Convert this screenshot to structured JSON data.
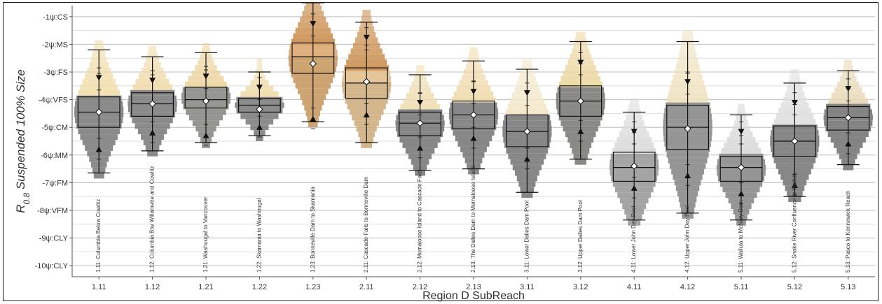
{
  "chart_data": {
    "type": "box",
    "xlabel": "Region D SubReach",
    "ylabel": "R0.8 Suspended 100% Size",
    "ylabel_parts": {
      "symbol": "R",
      "subscript": "0.8",
      "rest": " Suspended 100% Size"
    },
    "yticks": [
      {
        "value": -1,
        "label": "-1ψ:CS"
      },
      {
        "value": -2,
        "label": "-2ψ:MS"
      },
      {
        "value": -3,
        "label": "-3ψ:FS"
      },
      {
        "value": -4,
        "label": "-4ψ:VFS"
      },
      {
        "value": -5,
        "label": "-5ψ:CM"
      },
      {
        "value": -6,
        "label": "-6ψ:MM"
      },
      {
        "value": -7,
        "label": "-7ψ:FM"
      },
      {
        "value": -8,
        "label": "-8ψ:VFM"
      },
      {
        "value": -9,
        "label": "-9ψ:CLY"
      },
      {
        "value": -10,
        "label": "-10ψ:CLY"
      }
    ],
    "ylim": [
      -10.4,
      -0.6
    ],
    "grid": true,
    "categories": [
      "1.11",
      "1.12",
      "1.21",
      "1.22",
      "1.23",
      "2.11",
      "2.12",
      "2.13",
      "3.11",
      "3.12",
      "4.11",
      "4.12",
      "5.11",
      "5.12",
      "5.13"
    ],
    "names": [
      "1.11: Columbia Below Cowlitz",
      "1.12: Columbia Btw Willamette and Cowlitz",
      "1.21: Washougal to Vancouver",
      "1.22: Skamania to Washougal",
      "1.23: Bonneville Dam to Skamania",
      "2.11: Cascade Falls to Bonneville Dam",
      "2.12: Memaloose Island to Cascade Falls",
      "2.13: The Dalles Dam to Memaloose Island",
      "3.11: Lower Dalles Dam Pool",
      "3.12: Upper Dalles Dam Pool",
      "4.11: Lower John Day Pool",
      "4.12: Upper John Day Pool",
      "5.11: Wallula to McNary Dam",
      "5.12: Snake River Confluence to Wallula",
      "5.13: Pasco to Kennewick Reach"
    ],
    "boxes": [
      {
        "whisker_high": -2.2,
        "q3": -3.9,
        "median": -4.45,
        "q1": -5.0,
        "whisker_low": -6.65,
        "mean": -4.45,
        "up_tri": -5.8,
        "down_tri": -3.2,
        "color": "#7e7e7e",
        "tint": "#f0dca8",
        "warm": false
      },
      {
        "whisker_high": -2.45,
        "q3": -3.75,
        "median": -4.15,
        "q1": -4.6,
        "whisker_low": -5.85,
        "mean": -4.15,
        "up_tri": -5.2,
        "down_tri": -3.3,
        "color": "#7e7e7e",
        "tint": "#efd9a6",
        "warm": false
      },
      {
        "whisker_high": -2.3,
        "q3": -3.55,
        "median": -4.0,
        "q1": -4.3,
        "whisker_low": -5.55,
        "mean": -4.05,
        "up_tri": -5.3,
        "down_tri": -3.15,
        "color": "#8a8a86",
        "tint": "#ecd39c",
        "warm": false
      },
      {
        "whisker_high": -3.0,
        "q3": -3.95,
        "median": -4.2,
        "q1": -4.45,
        "whisker_low": -5.3,
        "mean": -4.35,
        "up_tri": -5.0,
        "down_tri": -3.55,
        "color": "#7e7e7e",
        "tint": "#efd9a6",
        "warm": false
      },
      {
        "whisker_high": -0.5,
        "q3": -1.95,
        "median": -2.45,
        "q1": -3.05,
        "whisker_low": -4.8,
        "mean": -2.7,
        "up_tri": -4.7,
        "down_tri": -1.25,
        "color": "#c89a62",
        "tint": "#d9a770",
        "warm": true
      },
      {
        "whisker_high": -1.2,
        "q3": -2.85,
        "median": -3.4,
        "q1": -3.95,
        "whisker_low": -5.55,
        "mean": -3.35,
        "up_tri": -4.55,
        "down_tri": -1.75,
        "color": "#cfae80",
        "tint": "#e2c08e",
        "warm": true
      },
      {
        "whisker_high": -3.1,
        "q3": -4.45,
        "median": -4.85,
        "q1": -5.3,
        "whisker_low": -6.55,
        "mean": -4.85,
        "up_tri": -5.75,
        "down_tri": -4.1,
        "color": "#7a7a7a",
        "tint": "#efdcae",
        "warm": false
      },
      {
        "whisker_high": -2.6,
        "q3": -4.05,
        "median": -4.55,
        "q1": -5.05,
        "whisker_low": -6.5,
        "mean": -4.55,
        "up_tri": -5.4,
        "down_tri": -3.7,
        "color": "#7a7a7a",
        "tint": "#efd9a8",
        "warm": false
      },
      {
        "whisker_high": -2.9,
        "q3": -4.55,
        "median": -5.15,
        "q1": -5.7,
        "whisker_low": -7.35,
        "mean": -5.15,
        "up_tri": -6.15,
        "down_tri": -3.75,
        "color": "#7a7a7a",
        "tint": "#f3e6c6",
        "warm": false
      },
      {
        "whisker_high": -1.9,
        "q3": -3.5,
        "median": -4.05,
        "q1": -4.6,
        "whisker_low": -6.15,
        "mean": -4.05,
        "up_tri": -5.15,
        "down_tri": -2.65,
        "color": "#7c7c78",
        "tint": "#ecd6a0",
        "warm": false
      },
      {
        "whisker_high": -4.45,
        "q3": -5.9,
        "median": -6.45,
        "q1": -6.95,
        "whisker_low": -8.35,
        "mean": -6.4,
        "up_tri": -7.2,
        "down_tri": -5.15,
        "color": "#9a9a9a",
        "tint": "#d9d9d9",
        "warm": false
      },
      {
        "whisker_high": -1.9,
        "q3": -4.2,
        "median": -5.0,
        "q1": -5.8,
        "whisker_low": -8.1,
        "mean": -5.05,
        "up_tri": -6.75,
        "down_tri": -3.35,
        "color": "#8a8a8a",
        "tint": "#efe1bd",
        "warm": false
      },
      {
        "whisker_high": -4.55,
        "q3": -6.05,
        "median": -6.45,
        "q1": -6.95,
        "whisker_low": -8.35,
        "mean": -6.45,
        "up_tri": -7.4,
        "down_tri": -5.15,
        "color": "#8a8a8a",
        "tint": "#d6d6d6",
        "warm": false
      },
      {
        "whisker_high": -3.4,
        "q3": -4.95,
        "median": -5.5,
        "q1": -6.05,
        "whisker_low": -7.5,
        "mean": -5.5,
        "up_tri": -7.1,
        "down_tri": -4.1,
        "color": "#7a7a7a",
        "tint": "#dcdcdc",
        "warm": false
      },
      {
        "whisker_high": -2.95,
        "q3": -4.25,
        "median": -4.65,
        "q1": -5.1,
        "whisker_low": -6.35,
        "mean": -4.65,
        "up_tri": -5.6,
        "down_tri": -3.6,
        "color": "#777777",
        "tint": "#e7d7b4",
        "warm": false
      }
    ]
  }
}
